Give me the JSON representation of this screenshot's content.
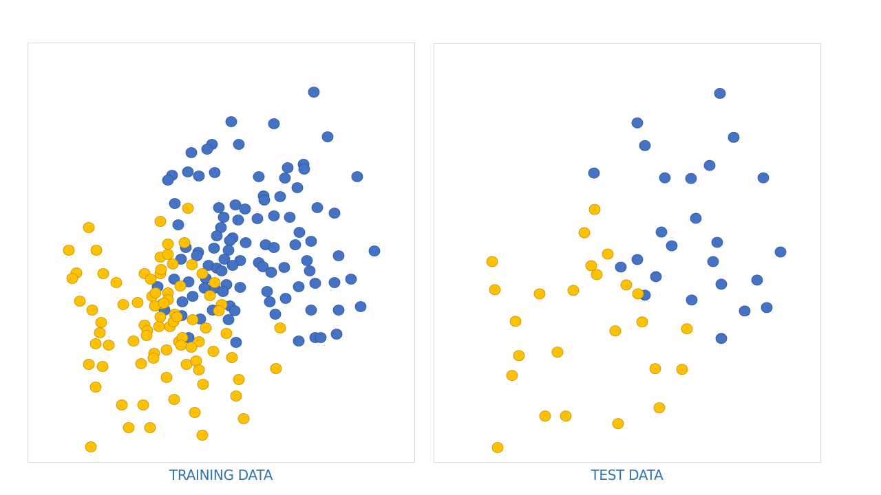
{
  "colors": {
    "class_a": "#4472C4",
    "class_a_stroke": "#2F5597",
    "class_b": "#FFC000",
    "class_b_stroke": "#BF9000",
    "caption": "#2E75B6"
  },
  "chart_data": [
    {
      "type": "scatter",
      "title": "TRAINING DATA",
      "axes_visible": false,
      "grid": false,
      "xlim": [
        0,
        56.2
      ],
      "ylim": [
        0,
        61
      ],
      "series": [
        {
          "color": "#4472C4",
          "points": [
            [
              41.5,
              53.9
            ],
            [
              29.5,
              49.6
            ],
            [
              35.7,
              49.3
            ],
            [
              43.5,
              47.4
            ],
            [
              30.6,
              46.3
            ],
            [
              26.7,
              46.3
            ],
            [
              26.0,
              45.6
            ],
            [
              23.7,
              45.1
            ],
            [
              20.9,
              41.8
            ],
            [
              20.3,
              41.1
            ],
            [
              23.2,
              42.3
            ],
            [
              24.8,
              41.7
            ],
            [
              27.1,
              42.2
            ],
            [
              33.5,
              41.6
            ],
            [
              37.7,
              42.9
            ],
            [
              37.3,
              41.4
            ],
            [
              40.0,
              43.4
            ],
            [
              40.1,
              42.7
            ],
            [
              47.8,
              41.6
            ],
            [
              39.1,
              40.0
            ],
            [
              34.2,
              38.8
            ],
            [
              34.3,
              38.2
            ],
            [
              36.6,
              38.7
            ],
            [
              21.3,
              37.7
            ],
            [
              27.7,
              37.1
            ],
            [
              30.1,
              37.5
            ],
            [
              31.5,
              36.9
            ],
            [
              42.0,
              37.1
            ],
            [
              44.5,
              36.3
            ],
            [
              21.8,
              34.6
            ],
            [
              28.4,
              35.7
            ],
            [
              30.5,
              35.3
            ],
            [
              33.3,
              35.5
            ],
            [
              35.7,
              35.9
            ],
            [
              38.0,
              35.7
            ],
            [
              28.0,
              34.2
            ],
            [
              39.4,
              33.5
            ],
            [
              27.4,
              33.0
            ],
            [
              29.7,
              32.7
            ],
            [
              29.3,
              32.3
            ],
            [
              31.6,
              32.0
            ],
            [
              34.5,
              31.7
            ],
            [
              35.7,
              31.3
            ],
            [
              38.8,
              31.7
            ],
            [
              41.1,
              32.2
            ],
            [
              50.3,
              30.8
            ],
            [
              22.9,
              31.3
            ],
            [
              24.7,
              30.6
            ],
            [
              24.5,
              30.1
            ],
            [
              27.0,
              31.2
            ],
            [
              29.1,
              30.9
            ],
            [
              22.2,
              29.6
            ],
            [
              26.2,
              28.7
            ],
            [
              28.5,
              29.6
            ],
            [
              30.8,
              29.4
            ],
            [
              29.7,
              28.7
            ],
            [
              27.4,
              28.3
            ],
            [
              28.1,
              27.9
            ],
            [
              33.5,
              29.1
            ],
            [
              34.1,
              28.5
            ],
            [
              35.3,
              27.7
            ],
            [
              37.2,
              28.4
            ],
            [
              40.5,
              29.4
            ],
            [
              40.9,
              27.9
            ],
            [
              45.1,
              30.1
            ],
            [
              18.8,
              25.6
            ],
            [
              21.2,
              26.7
            ],
            [
              23.3,
              26.3
            ],
            [
              25.8,
              26.8
            ],
            [
              25.6,
              25.4
            ],
            [
              27.1,
              25.4
            ],
            [
              28.8,
              25.9
            ],
            [
              28.3,
              24.9
            ],
            [
              30.8,
              25.5
            ],
            [
              34.7,
              24.9
            ],
            [
              39.3,
              25.6
            ],
            [
              41.7,
              26.1
            ],
            [
              44.5,
              26.2
            ],
            [
              46.9,
              26.7
            ],
            [
              22.4,
              23.4
            ],
            [
              23.9,
              24.2
            ],
            [
              29.3,
              22.8
            ],
            [
              35.1,
              23.4
            ],
            [
              37.4,
              23.9
            ],
            [
              19.8,
              22.2
            ],
            [
              22.3,
              21.4
            ],
            [
              26.8,
              22.2
            ],
            [
              30.0,
              22.1
            ],
            [
              41.1,
              22.2
            ],
            [
              45.1,
              22.2
            ],
            [
              48.3,
              22.7
            ],
            [
              25.0,
              20.9
            ],
            [
              29.1,
              20.8
            ],
            [
              35.9,
              21.6
            ],
            [
              23.3,
              18.2
            ],
            [
              30.2,
              17.5
            ],
            [
              39.3,
              17.7
            ],
            [
              41.7,
              18.2
            ],
            [
              42.5,
              18.2
            ],
            [
              44.8,
              18.7
            ]
          ]
        },
        {
          "color": "#FFC000",
          "points": [
            [
              8.8,
              34.2
            ],
            [
              19.2,
              35.1
            ],
            [
              23.2,
              37.0
            ],
            [
              5.9,
              30.9
            ],
            [
              9.9,
              30.9
            ],
            [
              20.3,
              31.8
            ],
            [
              22.7,
              32.0
            ],
            [
              19.2,
              29.9
            ],
            [
              20.3,
              30.3
            ],
            [
              21.0,
              28.9
            ],
            [
              23.8,
              28.8
            ],
            [
              7.0,
              27.6
            ],
            [
              6.4,
              26.8
            ],
            [
              10.9,
              27.5
            ],
            [
              12.8,
              26.2
            ],
            [
              16.9,
              27.5
            ],
            [
              17.8,
              26.7
            ],
            [
              19.2,
              27.5
            ],
            [
              19.3,
              28.1
            ],
            [
              22.1,
              25.7
            ],
            [
              25.3,
              27.5
            ],
            [
              27.1,
              26.2
            ],
            [
              7.5,
              23.5
            ],
            [
              13.8,
              23.0
            ],
            [
              15.9,
              23.3
            ],
            [
              18.0,
              24.2
            ],
            [
              18.5,
              24.7
            ],
            [
              20.3,
              24.7
            ],
            [
              20.3,
              23.7
            ],
            [
              19.5,
              23.1
            ],
            [
              18.4,
              22.8
            ],
            [
              26.4,
              24.3
            ],
            [
              28.1,
              23.0
            ],
            [
              27.7,
              22.1
            ],
            [
              9.3,
              22.2
            ],
            [
              10.6,
              20.4
            ],
            [
              16.9,
              20.0
            ],
            [
              17.3,
              19.2
            ],
            [
              17.2,
              18.5
            ],
            [
              19.0,
              19.8
            ],
            [
              20.6,
              19.8
            ],
            [
              21.3,
              21.6
            ],
            [
              21.1,
              20.5
            ],
            [
              21.6,
              21.2
            ],
            [
              23.9,
              20.8
            ],
            [
              25.8,
              19.6
            ],
            [
              10.4,
              18.9
            ],
            [
              15.3,
              17.7
            ],
            [
              21.9,
              17.6
            ],
            [
              22.4,
              18.2
            ],
            [
              22.2,
              17.1
            ],
            [
              24.8,
              17.6
            ],
            [
              28.8,
              18.8
            ],
            [
              36.6,
              19.6
            ],
            [
              9.8,
              17.3
            ],
            [
              11.7,
              17.1
            ],
            [
              20.1,
              16.4
            ],
            [
              23.7,
              16.8
            ],
            [
              26.9,
              16.2
            ],
            [
              18.3,
              15.9
            ],
            [
              18.2,
              15.2
            ],
            [
              8.8,
              14.3
            ],
            [
              10.8,
              14.0
            ],
            [
              16.4,
              14.4
            ],
            [
              23.0,
              14.3
            ],
            [
              24.4,
              14.8
            ],
            [
              24.8,
              13.5
            ],
            [
              29.6,
              15.3
            ],
            [
              36.0,
              13.7
            ],
            [
              20.1,
              12.4
            ],
            [
              25.4,
              11.4
            ],
            [
              30.6,
              12.1
            ],
            [
              9.8,
              11.0
            ],
            [
              21.2,
              9.2
            ],
            [
              30.2,
              9.7
            ],
            [
              13.6,
              8.4
            ],
            [
              16.7,
              8.4
            ],
            [
              24.2,
              7.3
            ],
            [
              14.6,
              5.1
            ],
            [
              17.7,
              5.1
            ],
            [
              31.3,
              6.4
            ],
            [
              25.3,
              4.0
            ],
            [
              9.1,
              2.3
            ],
            [
              19.7,
              23.2
            ],
            [
              19.2,
              21.2
            ]
          ]
        }
      ]
    },
    {
      "type": "scatter",
      "title": "TEST DATA",
      "axes_visible": false,
      "grid": false,
      "xlim": [
        0,
        56.2
      ],
      "ylim": [
        0,
        61
      ],
      "series": [
        {
          "color": "#4472C4",
          "points": [
            [
              41.5,
              53.8
            ],
            [
              29.5,
              49.5
            ],
            [
              43.5,
              47.4
            ],
            [
              30.6,
              46.2
            ],
            [
              23.2,
              42.2
            ],
            [
              33.5,
              41.5
            ],
            [
              37.3,
              41.4
            ],
            [
              40.0,
              43.3
            ],
            [
              47.8,
              41.5
            ],
            [
              38.0,
              35.6
            ],
            [
              33.0,
              33.6
            ],
            [
              34.5,
              31.6
            ],
            [
              41.1,
              32.1
            ],
            [
              40.5,
              29.3
            ],
            [
              50.3,
              30.7
            ],
            [
              29.5,
              29.6
            ],
            [
              27.1,
              28.5
            ],
            [
              32.2,
              27.1
            ],
            [
              30.6,
              24.4
            ],
            [
              41.7,
              26.0
            ],
            [
              46.9,
              26.6
            ],
            [
              37.4,
              23.7
            ],
            [
              45.1,
              22.1
            ],
            [
              48.3,
              22.6
            ],
            [
              41.7,
              18.1
            ]
          ]
        },
        {
          "color": "#FFC000",
          "points": [
            [
              23.3,
              36.9
            ],
            [
              21.8,
              33.5
            ],
            [
              25.2,
              30.4
            ],
            [
              8.4,
              29.3
            ],
            [
              22.8,
              28.7
            ],
            [
              23.6,
              27.4
            ],
            [
              27.9,
              25.9
            ],
            [
              8.8,
              25.2
            ],
            [
              15.3,
              24.6
            ],
            [
              20.2,
              25.1
            ],
            [
              29.6,
              24.6
            ],
            [
              11.8,
              20.6
            ],
            [
              30.2,
              20.5
            ],
            [
              26.3,
              19.2
            ],
            [
              36.7,
              19.5
            ],
            [
              12.3,
              15.6
            ],
            [
              17.9,
              16.1
            ],
            [
              11.3,
              12.7
            ],
            [
              32.1,
              13.7
            ],
            [
              36.0,
              13.6
            ],
            [
              32.7,
              8.0
            ],
            [
              16.1,
              6.8
            ],
            [
              19.1,
              6.8
            ],
            [
              26.7,
              5.7
            ],
            [
              9.2,
              2.2
            ]
          ]
        }
      ]
    }
  ]
}
